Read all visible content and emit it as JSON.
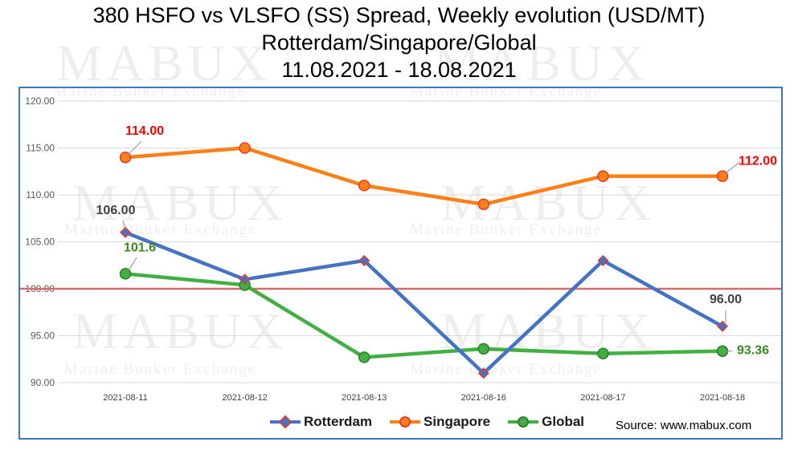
{
  "title": {
    "line1": "380 HSFO vs VLSFO (SS) Spread, Weekly evolution (USD/MT)",
    "line2": "Rotterdam/Singapore/Global",
    "line3": "11.08.2021 - 18.08.2021"
  },
  "watermark": {
    "big": "MABUX",
    "small": "Marine Bunker Exchange"
  },
  "source": "Source: www.mabux.com",
  "colors": {
    "frame": "#3a78c3",
    "rotterdam": "#4472c4",
    "rotterdam_marker": "#e83a2e",
    "singapore": "#ff7f17",
    "global": "#3fb041",
    "reference_line": "#d96b6b",
    "grid": "#d9d9d9"
  },
  "chart_data": {
    "type": "line",
    "categories": [
      "2021-08-11",
      "2021-08-12",
      "2021-08-13",
      "2021-08-16",
      "2021-08-17",
      "2021-08-18"
    ],
    "ylim": [
      90,
      120
    ],
    "yticks": [
      "90.00",
      "95.00",
      "100.00",
      "105.00",
      "110.00",
      "115.00",
      "120.00"
    ],
    "grid": true,
    "reference_line": 100,
    "legend_position": "bottom",
    "series": [
      {
        "name": "Rotterdam",
        "values": [
          106.0,
          101.0,
          103.0,
          91.0,
          103.0,
          96.0
        ]
      },
      {
        "name": "Singapore",
        "values": [
          114.0,
          115.0,
          111.0,
          109.0,
          112.0,
          112.0
        ]
      },
      {
        "name": "Global",
        "values": [
          101.6,
          100.4,
          92.7,
          93.6,
          93.1,
          93.36
        ]
      }
    ],
    "annotations": [
      {
        "series": "Singapore",
        "index": 0,
        "text": "114.00",
        "color": "#ff0000"
      },
      {
        "series": "Singapore",
        "index": 5,
        "text": "112.00",
        "color": "#ff0000"
      },
      {
        "series": "Rotterdam",
        "index": 0,
        "text": "106.00",
        "color": "#404040"
      },
      {
        "series": "Rotterdam",
        "index": 5,
        "text": "96.00",
        "color": "#404040"
      },
      {
        "series": "Global",
        "index": 0,
        "text": "101.6",
        "color": "#3a8a1e"
      },
      {
        "series": "Global",
        "index": 5,
        "text": "93.36",
        "color": "#3a8a1e"
      }
    ]
  }
}
